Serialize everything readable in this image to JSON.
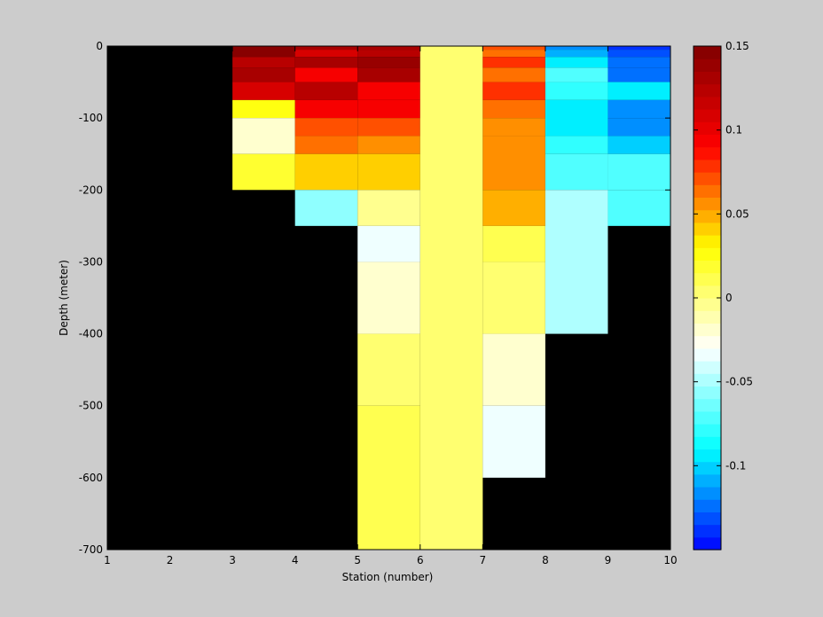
{
  "chart_data": {
    "type": "heatmap",
    "title": "",
    "xlabel": "Station (number)",
    "ylabel": "Depth (meter)",
    "xlim": [
      1,
      10
    ],
    "ylim": [
      -700,
      0
    ],
    "xticks": [
      1,
      2,
      3,
      4,
      5,
      6,
      7,
      8,
      9,
      10
    ],
    "yticks": [
      0,
      -100,
      -200,
      -300,
      -400,
      -500,
      -600,
      -700
    ],
    "colorbar": {
      "clim": [
        -0.15,
        0.15
      ],
      "ticks": [
        0.15,
        0.1,
        0.05,
        0,
        -0.05,
        -0.1
      ],
      "tick_labels": [
        "0.15",
        "0.1",
        "0.05",
        "0",
        "-0.05",
        "-0.1"
      ],
      "colormap": "jet-white-center",
      "stops": [
        "#0000ff",
        "#00ffff",
        "#ffffff",
        "#ffff00",
        "#ff0000",
        "#800000"
      ],
      "levels": 40,
      "placement": "right"
    },
    "missing_color": "#000000",
    "grid": false,
    "cells": [
      {
        "x0": 3,
        "x1": 4,
        "y0": 0,
        "y1": -15,
        "value": 0.145
      },
      {
        "x0": 3,
        "x1": 4,
        "y0": -15,
        "y1": -30,
        "value": 0.125
      },
      {
        "x0": 3,
        "x1": 4,
        "y0": -30,
        "y1": -50,
        "value": 0.13
      },
      {
        "x0": 3,
        "x1": 4,
        "y0": -50,
        "y1": -75,
        "value": 0.11
      },
      {
        "x0": 3,
        "x1": 4,
        "y0": -75,
        "y1": -100,
        "value": 0.025
      },
      {
        "x0": 3,
        "x1": 4,
        "y0": -100,
        "y1": -150,
        "value": -0.02
      },
      {
        "x0": 3,
        "x1": 4,
        "y0": -150,
        "y1": -200,
        "value": 0.02
      },
      {
        "x0": 4,
        "x1": 5,
        "y0": 0,
        "y1": -5,
        "value": 0.13
      },
      {
        "x0": 4,
        "x1": 5,
        "y0": -5,
        "y1": -15,
        "value": 0.11
      },
      {
        "x0": 4,
        "x1": 5,
        "y0": -15,
        "y1": -30,
        "value": 0.13
      },
      {
        "x0": 4,
        "x1": 5,
        "y0": -30,
        "y1": -50,
        "value": 0.09
      },
      {
        "x0": 4,
        "x1": 5,
        "y0": -50,
        "y1": -75,
        "value": 0.125
      },
      {
        "x0": 4,
        "x1": 5,
        "y0": -75,
        "y1": -100,
        "value": 0.09
      },
      {
        "x0": 4,
        "x1": 5,
        "y0": -100,
        "y1": -125,
        "value": 0.07
      },
      {
        "x0": 4,
        "x1": 5,
        "y0": -125,
        "y1": -150,
        "value": 0.06
      },
      {
        "x0": 4,
        "x1": 5,
        "y0": -150,
        "y1": -200,
        "value": 0.04
      },
      {
        "x0": 4,
        "x1": 5,
        "y0": -200,
        "y1": -250,
        "value": -0.06
      },
      {
        "x0": 5,
        "x1": 6,
        "y0": 0,
        "y1": -5,
        "value": 0.13
      },
      {
        "x0": 5,
        "x1": 6,
        "y0": -5,
        "y1": -15,
        "value": 0.12
      },
      {
        "x0": 5,
        "x1": 6,
        "y0": -15,
        "y1": -30,
        "value": 0.14
      },
      {
        "x0": 5,
        "x1": 6,
        "y0": -30,
        "y1": -50,
        "value": 0.13
      },
      {
        "x0": 5,
        "x1": 6,
        "y0": -50,
        "y1": -75,
        "value": 0.09
      },
      {
        "x0": 5,
        "x1": 6,
        "y0": -75,
        "y1": -100,
        "value": 0.09
      },
      {
        "x0": 5,
        "x1": 6,
        "y0": -100,
        "y1": -125,
        "value": 0.07
      },
      {
        "x0": 5,
        "x1": 6,
        "y0": -125,
        "y1": -150,
        "value": 0.055
      },
      {
        "x0": 5,
        "x1": 6,
        "y0": -150,
        "y1": -200,
        "value": 0.04
      },
      {
        "x0": 5,
        "x1": 6,
        "y0": -200,
        "y1": -250,
        "value": -0.005
      },
      {
        "x0": 5,
        "x1": 6,
        "y0": -250,
        "y1": -300,
        "value": -0.035
      },
      {
        "x0": 5,
        "x1": 6,
        "y0": -300,
        "y1": -400,
        "value": -0.02
      },
      {
        "x0": 5,
        "x1": 6,
        "y0": -400,
        "y1": -500,
        "value": 0.005
      },
      {
        "x0": 5,
        "x1": 6,
        "y0": -500,
        "y1": -700,
        "value": 0.015
      },
      {
        "x0": 6,
        "x1": 7,
        "y0": 0,
        "y1": -700,
        "value": 0.002
      },
      {
        "x0": 7,
        "x1": 8,
        "y0": 0,
        "y1": -5,
        "value": 0.07
      },
      {
        "x0": 7,
        "x1": 8,
        "y0": -5,
        "y1": -15,
        "value": 0.06
      },
      {
        "x0": 7,
        "x1": 8,
        "y0": -15,
        "y1": -30,
        "value": 0.08
      },
      {
        "x0": 7,
        "x1": 8,
        "y0": -30,
        "y1": -50,
        "value": 0.065
      },
      {
        "x0": 7,
        "x1": 8,
        "y0": -50,
        "y1": -75,
        "value": 0.075
      },
      {
        "x0": 7,
        "x1": 8,
        "y0": -75,
        "y1": -100,
        "value": 0.06
      },
      {
        "x0": 7,
        "x1": 8,
        "y0": -100,
        "y1": -125,
        "value": 0.055
      },
      {
        "x0": 7,
        "x1": 8,
        "y0": -125,
        "y1": -200,
        "value": 0.055
      },
      {
        "x0": 7,
        "x1": 8,
        "y0": -200,
        "y1": -250,
        "value": 0.045
      },
      {
        "x0": 7,
        "x1": 8,
        "y0": -250,
        "y1": -300,
        "value": 0.015
      },
      {
        "x0": 7,
        "x1": 8,
        "y0": -300,
        "y1": -400,
        "value": 0.001
      },
      {
        "x0": 7,
        "x1": 8,
        "y0": -400,
        "y1": -500,
        "value": -0.02
      },
      {
        "x0": 7,
        "x1": 8,
        "y0": -500,
        "y1": -600,
        "value": -0.035
      },
      {
        "x0": 8,
        "x1": 9,
        "y0": 0,
        "y1": -5,
        "value": -0.12
      },
      {
        "x0": 8,
        "x1": 9,
        "y0": -5,
        "y1": -15,
        "value": -0.11
      },
      {
        "x0": 8,
        "x1": 9,
        "y0": -15,
        "y1": -30,
        "value": -0.095
      },
      {
        "x0": 8,
        "x1": 9,
        "y0": -30,
        "y1": -50,
        "value": -0.07
      },
      {
        "x0": 8,
        "x1": 9,
        "y0": -50,
        "y1": -75,
        "value": -0.08
      },
      {
        "x0": 8,
        "x1": 9,
        "y0": -75,
        "y1": -125,
        "value": -0.095
      },
      {
        "x0": 8,
        "x1": 9,
        "y0": -125,
        "y1": -150,
        "value": -0.08
      },
      {
        "x0": 8,
        "x1": 9,
        "y0": -150,
        "y1": -200,
        "value": -0.07
      },
      {
        "x0": 8,
        "x1": 9,
        "y0": -200,
        "y1": -400,
        "value": -0.05
      },
      {
        "x0": 9,
        "x1": 10,
        "y0": 0,
        "y1": -5,
        "value": -0.14
      },
      {
        "x0": 9,
        "x1": 10,
        "y0": -5,
        "y1": -15,
        "value": -0.13
      },
      {
        "x0": 9,
        "x1": 10,
        "y0": -15,
        "y1": -30,
        "value": -0.125
      },
      {
        "x0": 9,
        "x1": 10,
        "y0": -30,
        "y1": -50,
        "value": -0.125
      },
      {
        "x0": 9,
        "x1": 10,
        "y0": -50,
        "y1": -75,
        "value": -0.095
      },
      {
        "x0": 9,
        "x1": 10,
        "y0": -75,
        "y1": -100,
        "value": -0.115
      },
      {
        "x0": 9,
        "x1": 10,
        "y0": -100,
        "y1": -125,
        "value": -0.12
      },
      {
        "x0": 9,
        "x1": 10,
        "y0": -125,
        "y1": -150,
        "value": -0.105
      },
      {
        "x0": 9,
        "x1": 10,
        "y0": -150,
        "y1": -200,
        "value": -0.075
      },
      {
        "x0": 9,
        "x1": 10,
        "y0": -200,
        "y1": -250,
        "value": -0.075
      }
    ]
  }
}
